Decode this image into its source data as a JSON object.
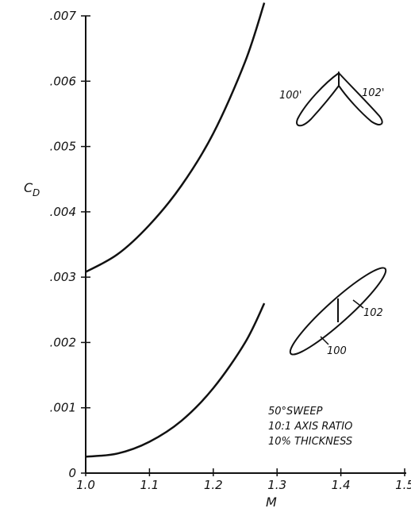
{
  "chart_data": {
    "type": "line",
    "xlabel": "M",
    "ylabel": "C",
    "ylabel_sub": "D",
    "xlim": [
      1.0,
      1.5
    ],
    "ylim": [
      0,
      0.007
    ],
    "x_ticks": [
      "1.0",
      "1.1",
      "1.2",
      "1.3",
      "1.4",
      "1.5"
    ],
    "y_ticks": [
      "0",
      ".001",
      ".002",
      ".003",
      ".004",
      ".005",
      ".006",
      ".007"
    ],
    "grid": false,
    "series": [
      {
        "x": [
          1.0,
          1.05,
          1.1,
          1.15,
          1.2,
          1.25,
          1.28
        ],
        "y": [
          0.00308,
          0.00335,
          0.0038,
          0.0044,
          0.0052,
          0.0063,
          0.0072
        ]
      },
      {
        "x": [
          1.0,
          1.05,
          1.1,
          1.15,
          1.2,
          1.25,
          1.28
        ],
        "y": [
          0.00025,
          0.0003,
          0.00048,
          0.0008,
          0.0013,
          0.002,
          0.0026
        ]
      }
    ],
    "annotations": [
      "50°SWEEP",
      "10:1 AXIS RATIO",
      "10% THICKNESS"
    ],
    "wing_labels": {
      "upper": [
        "100'",
        "102'"
      ],
      "lower": [
        "100",
        "102"
      ]
    }
  }
}
